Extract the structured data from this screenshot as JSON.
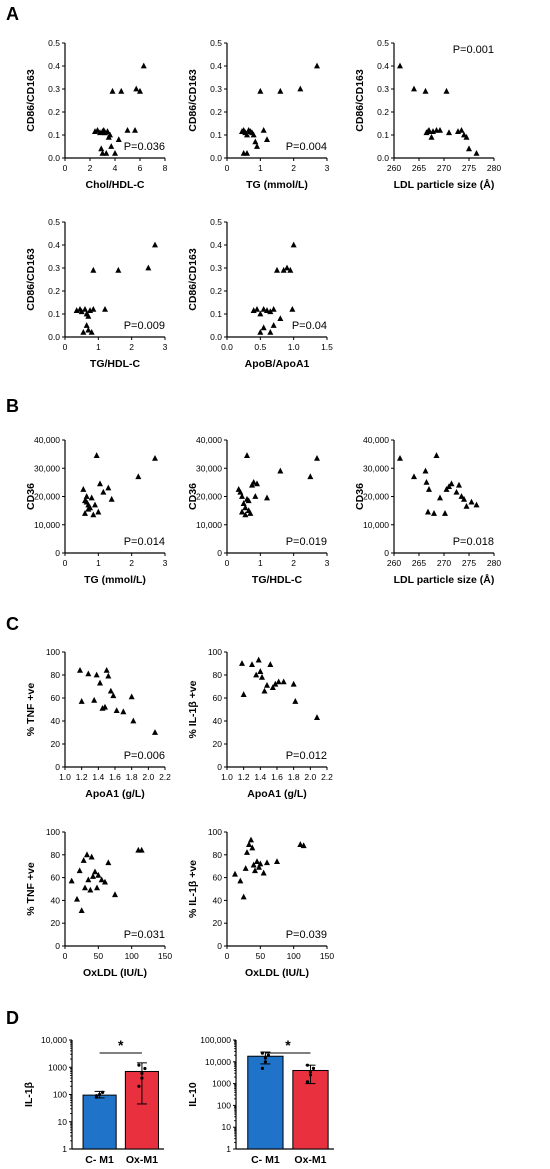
{
  "panel_letters": [
    "A",
    "B",
    "C",
    "D"
  ],
  "colors": {
    "marker": "#000000",
    "control_bar": "#1f74c9",
    "ox_bar": "#e8303f"
  },
  "chart_data": [
    {
      "id": "A1",
      "type": "scatter",
      "xlabel": "Chol/HDL-C",
      "ylabel": "CD86/CD163",
      "p_value": "P=0.036",
      "p_position": "bottom-right",
      "xlim": [
        0,
        8
      ],
      "ylim": [
        0,
        0.5
      ],
      "xticks": [
        "0",
        "2",
        "4",
        "6",
        "8"
      ],
      "yticks": [
        "0.0",
        "0.1",
        "0.2",
        "0.3",
        "0.4",
        "0.5"
      ],
      "x": [
        2.4,
        2.6,
        2.8,
        3.0,
        3.1,
        3.2,
        3.4,
        3.5,
        3.6,
        2.9,
        3.0,
        3.3,
        3.7,
        4.0,
        4.3,
        5.0,
        5.6,
        6.0,
        3.8,
        4.5,
        5.7,
        6.3,
        3.2
      ],
      "y": [
        0.115,
        0.12,
        0.11,
        0.115,
        0.12,
        0.11,
        0.115,
        0.09,
        0.1,
        0.04,
        0.02,
        0.02,
        0.05,
        0.02,
        0.08,
        0.12,
        0.12,
        0.29,
        0.29,
        0.29,
        0.3,
        0.4,
        0.11
      ]
    },
    {
      "id": "A2",
      "type": "scatter",
      "xlabel": "TG (mmol/L)",
      "ylabel": "CD86/CD163",
      "p_value": "P=0.004",
      "p_position": "bottom-right",
      "xlim": [
        0,
        3
      ],
      "ylim": [
        0,
        0.5
      ],
      "xticks": [
        "0",
        "1",
        "2",
        "3"
      ],
      "yticks": [
        "0.0",
        "0.1",
        "0.2",
        "0.3",
        "0.4",
        "0.5"
      ],
      "x": [
        0.45,
        0.5,
        0.55,
        0.6,
        0.65,
        0.7,
        0.75,
        0.8,
        0.5,
        0.6,
        0.85,
        0.9,
        1.0,
        1.1,
        1.2,
        1.6,
        2.2,
        2.7
      ],
      "y": [
        0.115,
        0.12,
        0.11,
        0.1,
        0.12,
        0.115,
        0.11,
        0.1,
        0.02,
        0.02,
        0.07,
        0.05,
        0.29,
        0.12,
        0.08,
        0.29,
        0.3,
        0.4
      ]
    },
    {
      "id": "A3",
      "type": "scatter",
      "xlabel": "LDL particle size (Å)",
      "ylabel": "CD86/CD163",
      "p_value": "P=0.001",
      "p_position": "top-right",
      "xlim": [
        260,
        280
      ],
      "ylim": [
        0,
        0.5
      ],
      "xticks": [
        "260",
        "265",
        "270",
        "275",
        "280"
      ],
      "yticks": [
        "0.0",
        "0.1",
        "0.2",
        "0.3",
        "0.4",
        "0.5"
      ],
      "x": [
        261.2,
        264.0,
        266.3,
        266.5,
        266.8,
        267.0,
        267.8,
        268.5,
        269.2,
        270.5,
        271.0,
        272.8,
        273.5,
        274.0,
        274.5,
        275.0,
        276.5,
        267.5
      ],
      "y": [
        0.4,
        0.3,
        0.29,
        0.11,
        0.115,
        0.12,
        0.115,
        0.12,
        0.12,
        0.29,
        0.11,
        0.115,
        0.12,
        0.1,
        0.09,
        0.04,
        0.02,
        0.09
      ]
    },
    {
      "id": "A4",
      "type": "scatter",
      "xlabel": "TG/HDL-C",
      "ylabel": "CD86/CD163",
      "p_value": "P=0.009",
      "p_position": "bottom-right",
      "xlim": [
        0,
        3
      ],
      "ylim": [
        0,
        0.5
      ],
      "xticks": [
        "0",
        "1",
        "2",
        "3"
      ],
      "yticks": [
        "0.0",
        "0.1",
        "0.2",
        "0.3",
        "0.4",
        "0.5"
      ],
      "x": [
        0.35,
        0.45,
        0.5,
        0.6,
        0.65,
        0.7,
        0.75,
        0.55,
        0.65,
        0.7,
        0.8,
        0.85,
        1.2,
        1.6,
        0.85,
        2.5,
        2.7
      ],
      "y": [
        0.115,
        0.12,
        0.11,
        0.12,
        0.1,
        0.09,
        0.115,
        0.02,
        0.05,
        0.03,
        0.02,
        0.12,
        0.12,
        0.29,
        0.29,
        0.3,
        0.4
      ]
    },
    {
      "id": "A5",
      "type": "scatter",
      "xlabel": "ApoB/ApoA1",
      "ylabel": "CD86/CD163",
      "p_value": "P=0.04",
      "p_position": "bottom-right",
      "xlim": [
        0,
        1.5
      ],
      "ylim": [
        0,
        0.5
      ],
      "xticks": [
        "0.0",
        "0.5",
        "1.0",
        "1.5"
      ],
      "yticks": [
        "0.0",
        "0.1",
        "0.2",
        "0.3",
        "0.4",
        "0.5"
      ],
      "x": [
        0.4,
        0.45,
        0.5,
        0.55,
        0.6,
        0.65,
        0.7,
        0.5,
        0.55,
        0.65,
        0.7,
        0.8,
        0.75,
        0.85,
        0.9,
        0.95,
        1.0,
        0.98
      ],
      "y": [
        0.115,
        0.12,
        0.1,
        0.12,
        0.115,
        0.11,
        0.12,
        0.02,
        0.04,
        0.02,
        0.05,
        0.08,
        0.29,
        0.29,
        0.3,
        0.29,
        0.4,
        0.12
      ]
    },
    {
      "id": "B1",
      "type": "scatter",
      "xlabel": "TG (mmol/L)",
      "ylabel": "CD36",
      "p_value": "P=0.014",
      "p_position": "bottom-right",
      "xlim": [
        0,
        3
      ],
      "ylim": [
        0,
        40000
      ],
      "xticks": [
        "0",
        "1",
        "2",
        "3"
      ],
      "yticks": [
        "0",
        "10,000",
        "20,000",
        "30,000",
        "40,000"
      ],
      "x": [
        0.55,
        0.6,
        0.65,
        0.7,
        0.75,
        0.6,
        0.7,
        0.8,
        0.85,
        0.9,
        1.0,
        1.05,
        1.15,
        1.3,
        1.4,
        2.2,
        2.7,
        0.95,
        0.65
      ],
      "y": [
        22500,
        18500,
        20000,
        17000,
        16000,
        14000,
        15500,
        19500,
        13500,
        17000,
        14500,
        24500,
        21500,
        23000,
        19000,
        27000,
        33500,
        34500,
        18000
      ]
    },
    {
      "id": "B2",
      "type": "scatter",
      "xlabel": "TG/HDL-C",
      "ylabel": "CD36",
      "p_value": "P=0.019",
      "p_position": "bottom-right",
      "xlim": [
        0,
        3
      ],
      "ylim": [
        0,
        40000
      ],
      "xticks": [
        "0",
        "1",
        "2",
        "3"
      ],
      "yticks": [
        "0",
        "10,000",
        "20,000",
        "30,000",
        "40,000"
      ],
      "x": [
        0.35,
        0.4,
        0.45,
        0.5,
        0.55,
        0.6,
        0.65,
        0.7,
        0.45,
        0.55,
        0.65,
        0.75,
        0.8,
        0.9,
        0.85,
        1.2,
        1.6,
        2.5,
        2.7,
        0.6
      ],
      "y": [
        22500,
        21500,
        20000,
        17500,
        16000,
        19000,
        15000,
        14000,
        14500,
        13500,
        18500,
        24000,
        25000,
        24500,
        20000,
        19500,
        29000,
        27000,
        33500,
        34500
      ]
    },
    {
      "id": "B3",
      "type": "scatter",
      "xlabel": "LDL particle size (Å)",
      "ylabel": "CD36",
      "p_value": "P=0.018",
      "p_position": "bottom-right",
      "xlim": [
        260,
        280
      ],
      "ylim": [
        0,
        40000
      ],
      "xticks": [
        "260",
        "265",
        "270",
        "275",
        "280"
      ],
      "yticks": [
        "0",
        "10,000",
        "20,000",
        "30,000",
        "40,000"
      ],
      "x": [
        261.2,
        264.0,
        266.3,
        266.5,
        267.0,
        268.5,
        269.2,
        270.5,
        271.0,
        271.5,
        272.5,
        273.0,
        273.5,
        274.0,
        274.5,
        275.5,
        276.5,
        266.8,
        268.0,
        270.2
      ],
      "y": [
        33500,
        27000,
        29000,
        25000,
        22500,
        34500,
        19500,
        22500,
        23500,
        24500,
        21500,
        24000,
        20000,
        19000,
        16500,
        18000,
        17000,
        14500,
        14000,
        14000
      ]
    },
    {
      "id": "C1",
      "type": "scatter",
      "xlabel": "ApoA1 (g/L)",
      "ylabel": "% TNF +ve",
      "p_value": "P=0.006",
      "p_position": "bottom-right",
      "xlim": [
        1.0,
        2.2
      ],
      "ylim": [
        0,
        100
      ],
      "xticks": [
        "1.0",
        "1.2",
        "1.4",
        "1.6",
        "1.8",
        "2.0",
        "2.2"
      ],
      "yticks": [
        "0",
        "20",
        "40",
        "60",
        "80",
        "100"
      ],
      "x": [
        1.18,
        1.2,
        1.28,
        1.35,
        1.38,
        1.42,
        1.45,
        1.48,
        1.5,
        1.55,
        1.58,
        1.62,
        1.7,
        1.8,
        1.82,
        2.08,
        1.52
      ],
      "y": [
        84,
        57,
        81,
        58,
        80,
        73,
        51,
        52,
        84,
        66,
        62,
        49,
        48,
        61,
        40,
        30,
        79
      ]
    },
    {
      "id": "C2",
      "type": "scatter",
      "xlabel": "ApoA1 (g/L)",
      "ylabel": "% IL-1β +ve",
      "p_value": "P=0.012",
      "p_position": "bottom-right",
      "xlim": [
        1.0,
        2.2
      ],
      "ylim": [
        0,
        100
      ],
      "xticks": [
        "1.0",
        "1.2",
        "1.4",
        "1.6",
        "1.8",
        "2.0",
        "2.2"
      ],
      "yticks": [
        "0",
        "20",
        "40",
        "60",
        "80",
        "100"
      ],
      "x": [
        1.18,
        1.2,
        1.3,
        1.35,
        1.38,
        1.42,
        1.45,
        1.48,
        1.52,
        1.55,
        1.58,
        1.62,
        1.68,
        1.8,
        1.82,
        2.08,
        1.4
      ],
      "y": [
        90,
        63,
        89,
        80,
        93,
        78,
        66,
        71,
        89,
        69,
        72,
        74,
        74,
        72,
        57,
        43,
        83
      ]
    },
    {
      "id": "C3",
      "type": "scatter",
      "xlabel": "OxLDL (IU/L)",
      "ylabel": "% TNF +ve",
      "p_value": "P=0.031",
      "p_position": "bottom-right",
      "xlim": [
        0,
        150
      ],
      "ylim": [
        0,
        100
      ],
      "xticks": [
        "0",
        "50",
        "100",
        "150"
      ],
      "yticks": [
        "0",
        "20",
        "40",
        "60",
        "80",
        "100"
      ],
      "x": [
        10,
        18,
        22,
        25,
        28,
        30,
        33,
        35,
        38,
        40,
        42,
        45,
        48,
        50,
        55,
        60,
        65,
        75,
        110,
        115
      ],
      "y": [
        57,
        41,
        66,
        31,
        75,
        51,
        80,
        58,
        49,
        78,
        61,
        65,
        51,
        62,
        58,
        56,
        73,
        45,
        84,
        84
      ]
    },
    {
      "id": "C4",
      "type": "scatter",
      "xlabel": "OxLDL (IU/L)",
      "ylabel": "% IL-1β +ve",
      "p_value": "P=0.039",
      "p_position": "bottom-right",
      "xlim": [
        0,
        150
      ],
      "ylim": [
        0,
        100
      ],
      "xticks": [
        "0",
        "50",
        "100",
        "150"
      ],
      "yticks": [
        "0",
        "20",
        "40",
        "60",
        "80",
        "100"
      ],
      "x": [
        12,
        20,
        25,
        28,
        30,
        33,
        36,
        38,
        40,
        42,
        45,
        48,
        50,
        55,
        60,
        75,
        110,
        115
      ],
      "y": [
        63,
        57,
        43,
        68,
        82,
        89,
        93,
        86,
        71,
        66,
        74,
        69,
        72,
        64,
        73,
        74,
        89,
        88
      ]
    },
    {
      "id": "D1",
      "type": "bar",
      "ylabel": "IL-1β",
      "yscale": "log",
      "ylim": [
        1,
        10000
      ],
      "yticks": [
        "1",
        "10",
        "100",
        "1000",
        "10,000"
      ],
      "categories": [
        "C- M1",
        "Ox-M1"
      ],
      "values": [
        95,
        700
      ],
      "error_low": [
        75,
        45
      ],
      "error_high": [
        130,
        1450
      ],
      "points": [
        [
          80,
          100,
          120,
          90
        ],
        [
          200,
          400,
          900,
          1200,
          600
        ]
      ],
      "significance": "*"
    },
    {
      "id": "D2",
      "type": "bar",
      "ylabel": "IL-10",
      "yscale": "log",
      "ylim": [
        1,
        100000
      ],
      "yticks": [
        "1",
        "10",
        "100",
        "1000",
        "10,000",
        "100,000"
      ],
      "categories": [
        "C- M1",
        "Ox-M1"
      ],
      "values": [
        18000,
        4000
      ],
      "error_low": [
        8000,
        1000
      ],
      "error_high": [
        28000,
        7000
      ],
      "points": [
        [
          5000,
          15000,
          20000,
          25000,
          10000
        ],
        [
          1200,
          2500,
          5000,
          7000,
          3500
        ]
      ],
      "significance": "*"
    }
  ]
}
